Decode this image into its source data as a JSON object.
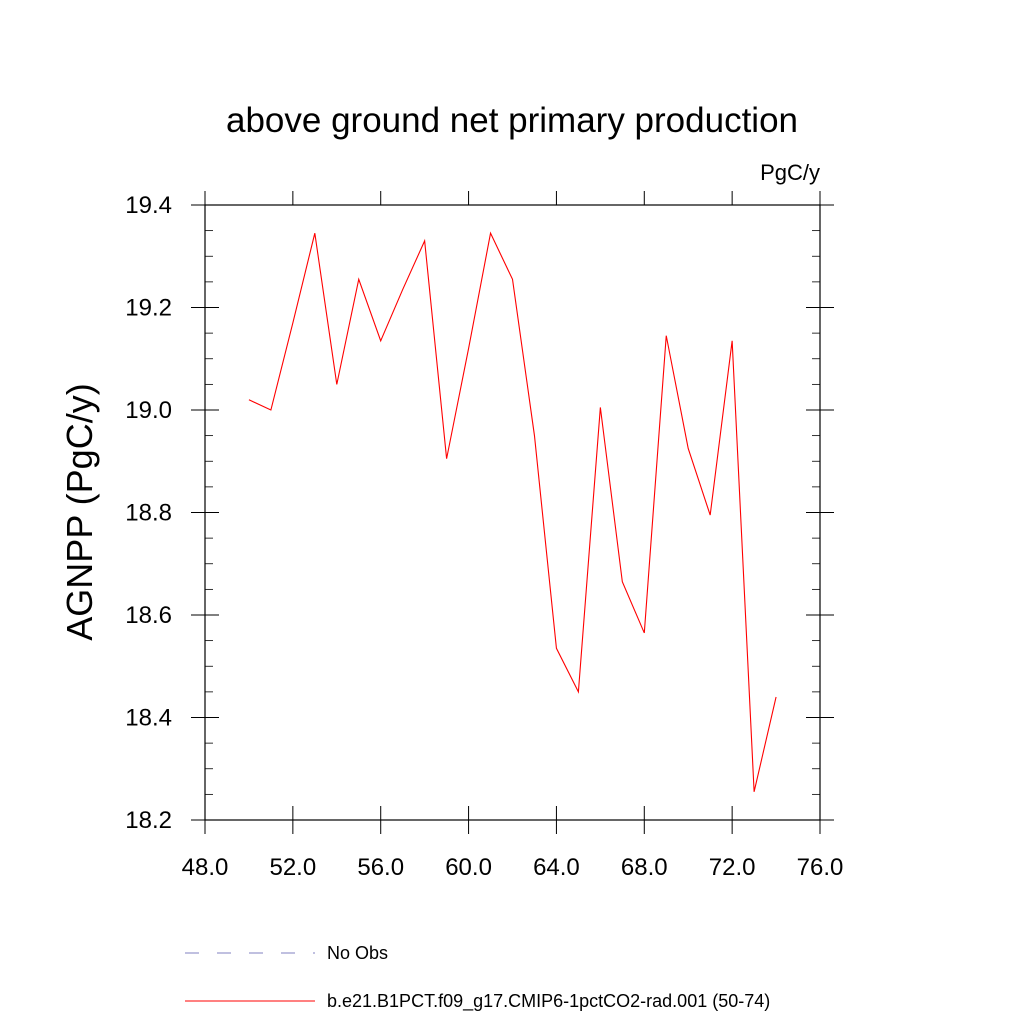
{
  "chart_data": {
    "type": "line",
    "title": "above ground net primary production",
    "units_label": "PgC/y",
    "xlabel": "",
    "ylabel": "AGNPP  (PgC/y)",
    "xlim": [
      48,
      76
    ],
    "ylim": [
      18.2,
      19.4
    ],
    "x_ticks": [
      "48.0",
      "52.0",
      "56.0",
      "60.0",
      "64.0",
      "68.0",
      "72.0",
      "76.0"
    ],
    "y_ticks": [
      "18.2",
      "18.4",
      "18.6",
      "18.8",
      "19.0",
      "19.2",
      "19.4"
    ],
    "grid": false,
    "legend_position": "bottom",
    "series": [
      {
        "name": "b.e21.B1PCT.f09_g17.CMIP6-1pctCO2-rad.001 (50-74)",
        "color": "#ff0000",
        "style": "solid",
        "x": [
          50,
          51,
          52,
          53,
          54,
          55,
          56,
          57,
          58,
          59,
          60,
          61,
          62,
          63,
          64,
          65,
          66,
          67,
          68,
          69,
          70,
          71,
          72,
          73,
          74
        ],
        "y": [
          19.02,
          19.0,
          19.17,
          19.345,
          19.05,
          19.255,
          19.135,
          19.235,
          19.33,
          18.905,
          19.12,
          19.345,
          19.255,
          18.95,
          18.535,
          18.45,
          19.005,
          18.665,
          18.565,
          19.145,
          18.925,
          18.795,
          19.135,
          18.255,
          18.44
        ]
      }
    ],
    "legend": [
      {
        "label": "No Obs",
        "color": "#8080c0",
        "style": "dashed"
      },
      {
        "label": "b.e21.B1PCT.f09_g17.CMIP6-1pctCO2-rad.001 (50-74)",
        "color": "#ff0000",
        "style": "solid"
      }
    ]
  }
}
